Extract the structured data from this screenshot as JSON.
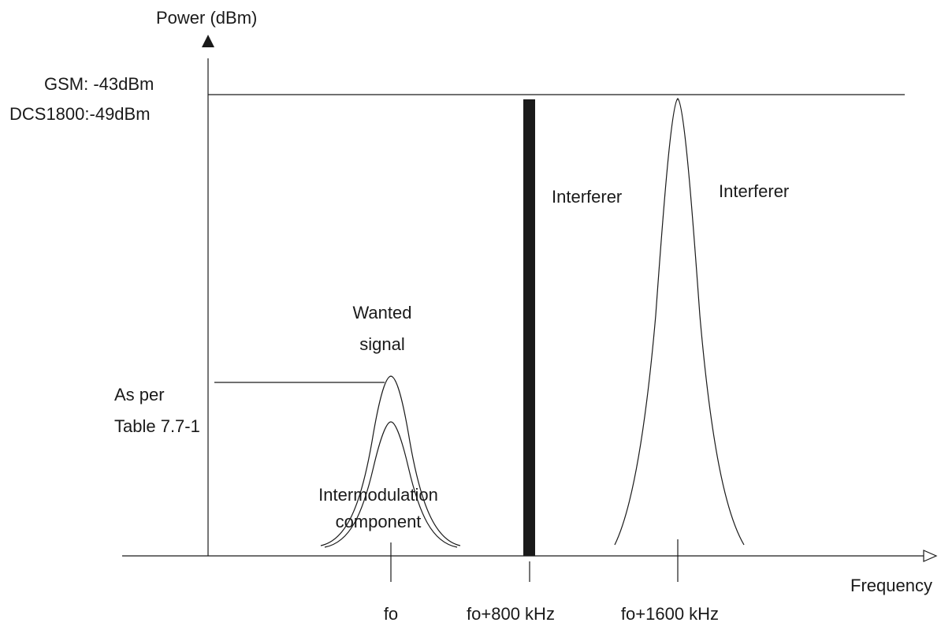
{
  "axes": {
    "y_label": "Power (dBm)",
    "x_label": "Frequency"
  },
  "levels": {
    "interferer_level_line1": "GSM: -43dBm",
    "interferer_level_line2": "DCS1800:-49dBm",
    "wanted_level_line1": "As per",
    "wanted_level_line2": "Table 7.7-1"
  },
  "signals": {
    "wanted_line1": "Wanted",
    "wanted_line2": "signal",
    "intermod_line1": "Intermodulation",
    "intermod_line2": "component",
    "interferer_cw": "Interferer",
    "interferer_modulated": "Interferer"
  },
  "frequencies": {
    "f0": "fo",
    "f800": "fo+800 kHz",
    "f1600": "fo+1600 kHz"
  },
  "colors": {
    "ink": "#1a1a1a",
    "background": "#ffffff"
  }
}
